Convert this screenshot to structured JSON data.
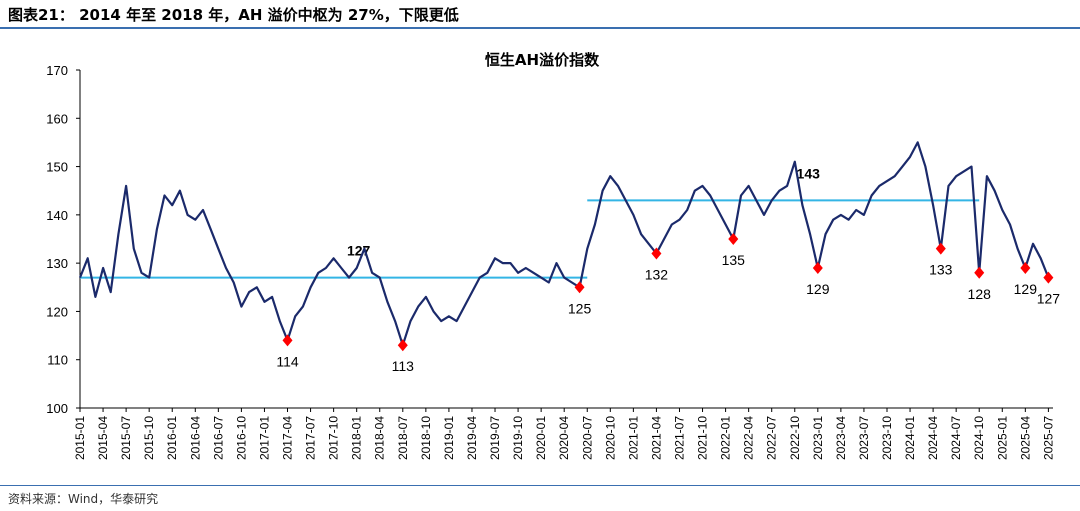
{
  "figure_title": "图表21：  2014 年至 2018 年，AH 溢价中枢为 27%，下限更低",
  "source": "资料来源：Wind，华泰研究",
  "colors": {
    "series": "#1b2a6b",
    "average": "#33b5e5",
    "marker": "#ff0000",
    "rule": "#3a6fb0"
  },
  "chart_data": {
    "type": "line",
    "title": "恒生AH溢价指数",
    "xlabel": "",
    "ylabel": "",
    "ylim": [
      100,
      170
    ],
    "yticks": [
      "100",
      "110",
      "120",
      "130",
      "140",
      "150",
      "160",
      "170"
    ],
    "xticks": [
      "2015-01",
      "2015-04",
      "2015-07",
      "2015-10",
      "2016-01",
      "2016-04",
      "2016-07",
      "2016-10",
      "2017-01",
      "2017-04",
      "2017-07",
      "2017-10",
      "2018-01",
      "2018-04",
      "2018-07",
      "2018-10",
      "2019-01",
      "2019-04",
      "2019-07",
      "2019-10",
      "2020-01",
      "2020-04",
      "2020-07",
      "2020-10",
      "2021-01",
      "2021-04",
      "2021-07",
      "2021-10",
      "2022-01",
      "2022-04",
      "2022-07",
      "2022-10",
      "2023-01",
      "2023-04",
      "2023-07",
      "2023-10",
      "2024-01",
      "2024-04",
      "2024-07",
      "2024-10",
      "2025-01",
      "2025-04",
      "2025-07"
    ],
    "series": [
      {
        "values": [
          [
            "2015-01",
            127
          ],
          [
            "2015-02",
            131
          ],
          [
            "2015-03",
            123
          ],
          [
            "2015-04",
            129
          ],
          [
            "2015-05",
            124
          ],
          [
            "2015-06",
            136
          ],
          [
            "2015-07",
            146
          ],
          [
            "2015-08",
            133
          ],
          [
            "2015-09",
            128
          ],
          [
            "2015-10",
            127
          ],
          [
            "2015-11",
            137
          ],
          [
            "2015-12",
            144
          ],
          [
            "2016-01",
            142
          ],
          [
            "2016-02",
            145
          ],
          [
            "2016-03",
            140
          ],
          [
            "2016-04",
            139
          ],
          [
            "2016-05",
            141
          ],
          [
            "2016-06",
            137
          ],
          [
            "2016-07",
            133
          ],
          [
            "2016-08",
            129
          ],
          [
            "2016-09",
            126
          ],
          [
            "2016-10",
            121
          ],
          [
            "2016-11",
            124
          ],
          [
            "2016-12",
            125
          ],
          [
            "2017-01",
            122
          ],
          [
            "2017-02",
            123
          ],
          [
            "2017-03",
            118
          ],
          [
            "2017-04",
            114
          ],
          [
            "2017-05",
            119
          ],
          [
            "2017-06",
            121
          ],
          [
            "2017-07",
            125
          ],
          [
            "2017-08",
            128
          ],
          [
            "2017-09",
            129
          ],
          [
            "2017-10",
            131
          ],
          [
            "2017-11",
            129
          ],
          [
            "2017-12",
            127
          ],
          [
            "2018-01",
            129
          ],
          [
            "2018-02",
            133
          ],
          [
            "2018-03",
            128
          ],
          [
            "2018-04",
            127
          ],
          [
            "2018-05",
            122
          ],
          [
            "2018-06",
            118
          ],
          [
            "2018-07",
            113
          ],
          [
            "2018-08",
            118
          ],
          [
            "2018-09",
            121
          ],
          [
            "2018-10",
            123
          ],
          [
            "2018-11",
            120
          ],
          [
            "2018-12",
            118
          ],
          [
            "2019-01",
            119
          ],
          [
            "2019-02",
            118
          ],
          [
            "2019-03",
            121
          ],
          [
            "2019-04",
            124
          ],
          [
            "2019-05",
            127
          ],
          [
            "2019-06",
            128
          ],
          [
            "2019-07",
            131
          ],
          [
            "2019-08",
            130
          ],
          [
            "2019-09",
            130
          ],
          [
            "2019-10",
            128
          ],
          [
            "2019-11",
            129
          ],
          [
            "2019-12",
            128
          ],
          [
            "2020-01",
            127
          ],
          [
            "2020-02",
            126
          ],
          [
            "2020-03",
            130
          ],
          [
            "2020-04",
            127
          ],
          [
            "2020-05",
            126
          ],
          [
            "2020-06",
            125
          ],
          [
            "2020-07",
            133
          ],
          [
            "2020-08",
            138
          ],
          [
            "2020-09",
            145
          ],
          [
            "2020-10",
            148
          ],
          [
            "2020-11",
            146
          ],
          [
            "2020-12",
            143
          ],
          [
            "2021-01",
            140
          ],
          [
            "2021-02",
            136
          ],
          [
            "2021-03",
            134
          ],
          [
            "2021-04",
            132
          ],
          [
            "2021-05",
            135
          ],
          [
            "2021-06",
            138
          ],
          [
            "2021-07",
            139
          ],
          [
            "2021-08",
            141
          ],
          [
            "2021-09",
            145
          ],
          [
            "2021-10",
            146
          ],
          [
            "2021-11",
            144
          ],
          [
            "2021-12",
            141
          ],
          [
            "2022-01",
            138
          ],
          [
            "2022-02",
            135
          ],
          [
            "2022-03",
            144
          ],
          [
            "2022-04",
            146
          ],
          [
            "2022-05",
            143
          ],
          [
            "2022-06",
            140
          ],
          [
            "2022-07",
            143
          ],
          [
            "2022-08",
            145
          ],
          [
            "2022-09",
            146
          ],
          [
            "2022-10",
            151
          ],
          [
            "2022-11",
            142
          ],
          [
            "2022-12",
            136
          ],
          [
            "2023-01",
            129
          ],
          [
            "2023-02",
            136
          ],
          [
            "2023-03",
            139
          ],
          [
            "2023-04",
            140
          ],
          [
            "2023-05",
            139
          ],
          [
            "2023-06",
            141
          ],
          [
            "2023-07",
            140
          ],
          [
            "2023-08",
            144
          ],
          [
            "2023-09",
            146
          ],
          [
            "2023-10",
            147
          ],
          [
            "2023-11",
            148
          ],
          [
            "2023-12",
            150
          ],
          [
            "2024-01",
            152
          ],
          [
            "2024-02",
            155
          ],
          [
            "2024-03",
            150
          ],
          [
            "2024-04",
            142
          ],
          [
            "2024-05",
            133
          ],
          [
            "2024-06",
            146
          ],
          [
            "2024-07",
            148
          ],
          [
            "2024-08",
            149
          ],
          [
            "2024-09",
            150
          ],
          [
            "2024-10",
            128
          ],
          [
            "2024-11",
            148
          ],
          [
            "2024-12",
            145
          ],
          [
            "2025-01",
            141
          ],
          [
            "2025-02",
            138
          ],
          [
            "2025-03",
            133
          ],
          [
            "2025-04",
            129
          ],
          [
            "2025-05",
            134
          ],
          [
            "2025-06",
            131
          ],
          [
            "2025-07",
            127
          ]
        ]
      }
    ],
    "average_lines": [
      {
        "from": "2015-01",
        "to": "2020-07",
        "value": 127,
        "label": "127"
      },
      {
        "from": "2020-07",
        "to": "2024-10",
        "value": 143,
        "label": "143"
      }
    ],
    "annotations": [
      {
        "date": "2017-04",
        "value": 114,
        "label": "114"
      },
      {
        "date": "2018-07",
        "value": 113,
        "label": "113"
      },
      {
        "date": "2020-06",
        "value": 125,
        "label": "125"
      },
      {
        "date": "2021-04",
        "value": 132,
        "label": "132"
      },
      {
        "date": "2022-02",
        "value": 135,
        "label": "135"
      },
      {
        "date": "2023-01",
        "value": 129,
        "label": "129"
      },
      {
        "date": "2024-05",
        "value": 133,
        "label": "133"
      },
      {
        "date": "2024-10",
        "value": 128,
        "label": "128"
      },
      {
        "date": "2025-04",
        "value": 129,
        "label": "129"
      },
      {
        "date": "2025-07",
        "value": 127,
        "label": "127"
      }
    ],
    "grid": false,
    "legend": "none"
  }
}
